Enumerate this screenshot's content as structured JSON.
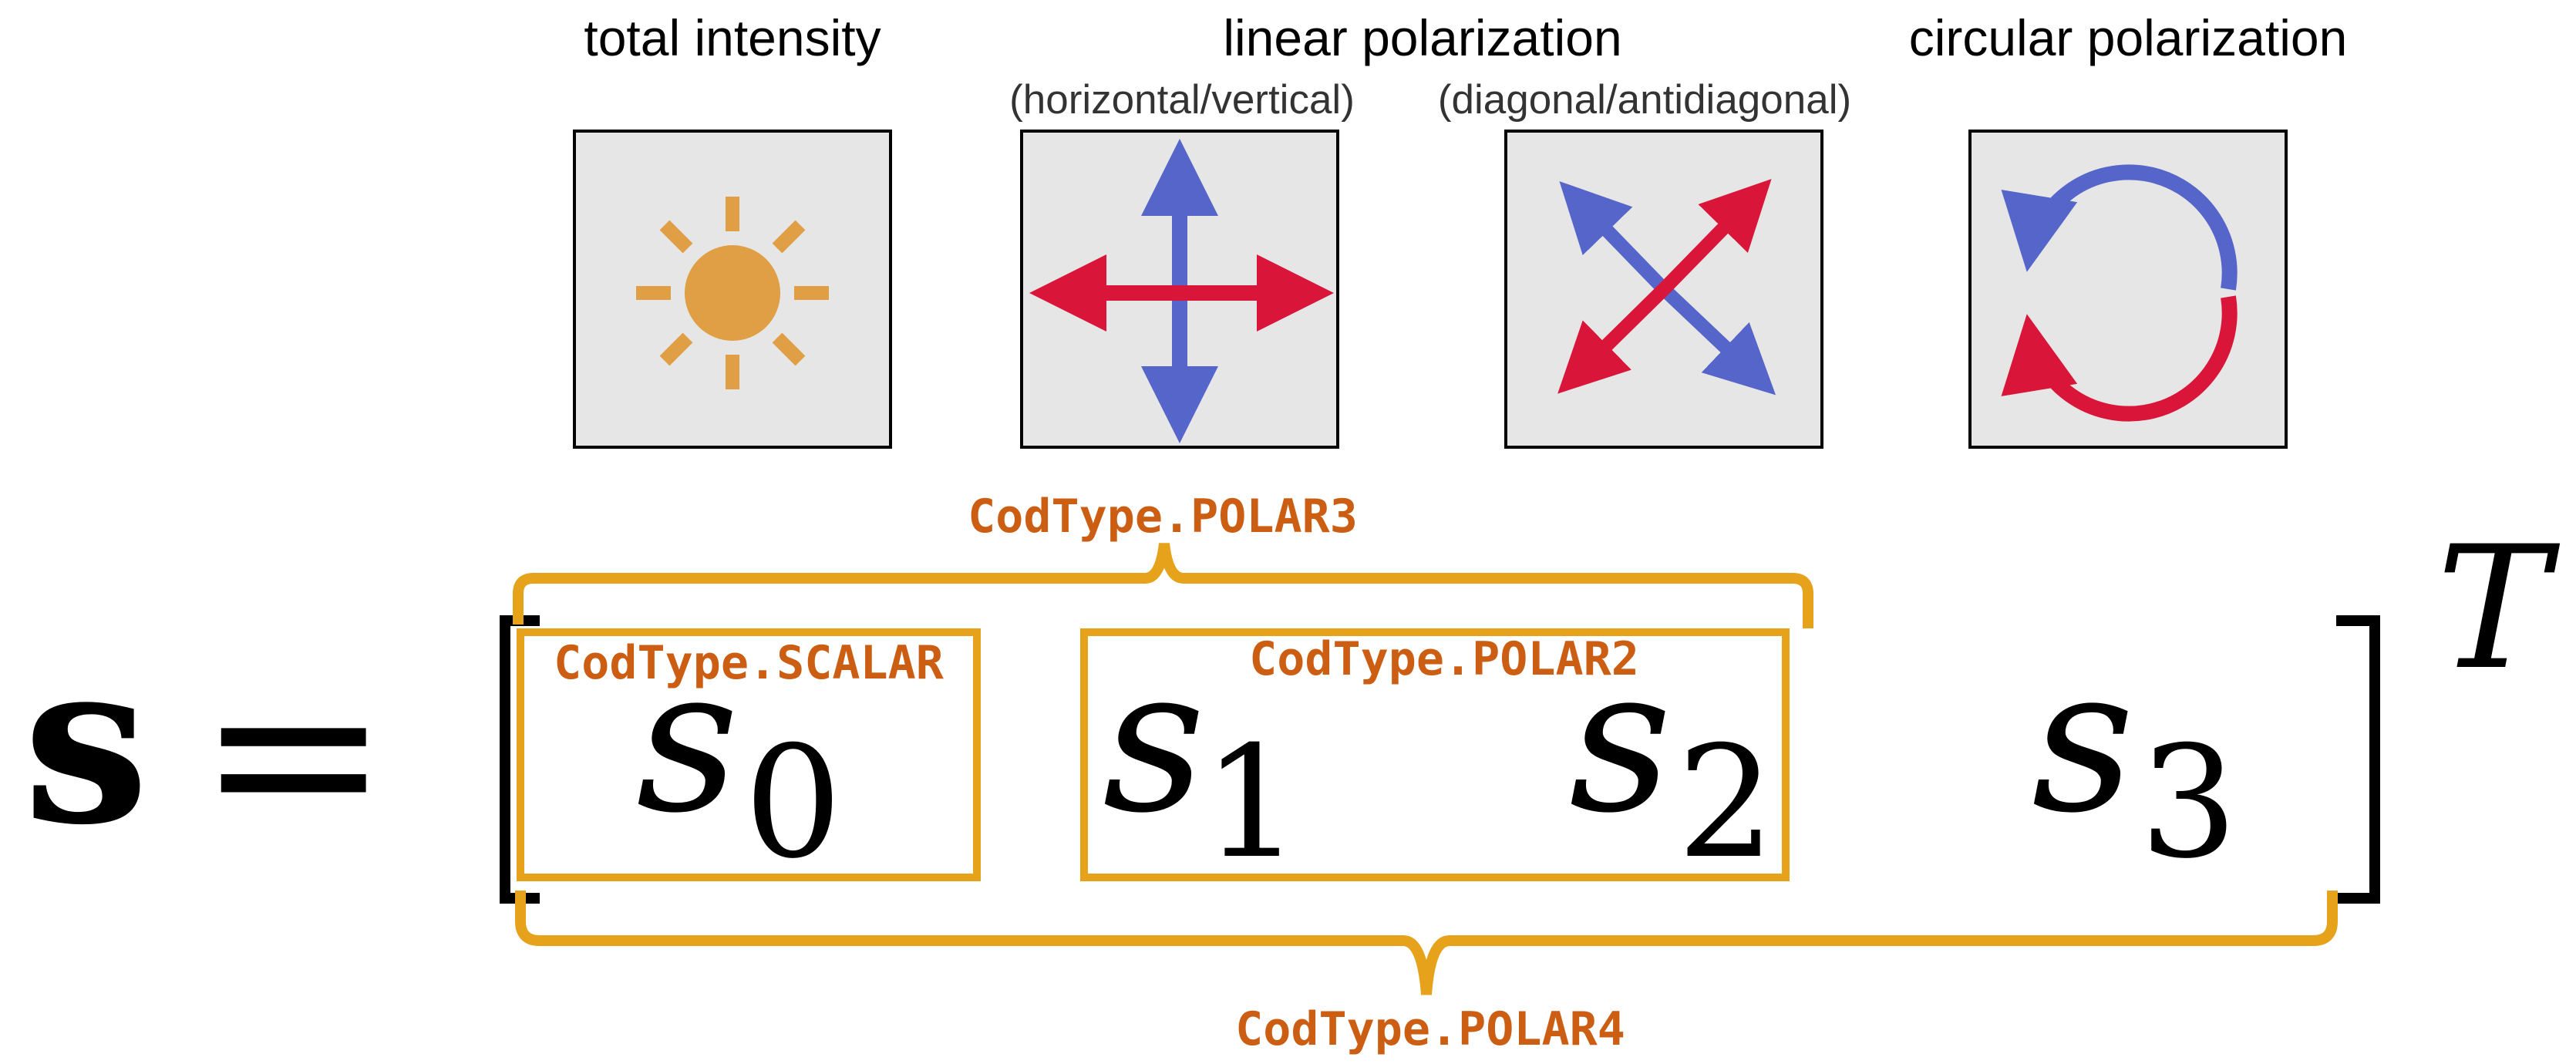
{
  "headers": {
    "total_intensity": "total intensity",
    "linear_polarization": "linear polarization",
    "circular_polarization": "circular polarization",
    "sub_hv": "(horizontal/vertical)",
    "sub_dad": "(diagonal/antidiagonal)"
  },
  "icons": [
    "sun-icon",
    "horizontal-vertical-arrows-icon",
    "diagonal-arrows-icon",
    "circular-arrows-icon"
  ],
  "equation": {
    "lhs": "s",
    "equals": "=",
    "sym": "s",
    "sub0": "0",
    "sub1": "1",
    "sub2": "2",
    "sub3": "3",
    "transpose": "T"
  },
  "codtypes": {
    "polar3": "CodType.POLAR3",
    "scalar": "CodType.SCALAR",
    "polar2": "CodType.POLAR2",
    "polar4": "CodType.POLAR4"
  },
  "colors": {
    "orange_label": "#cc5e14",
    "orange_bracket": "#e5a21a",
    "sun": "#e09e45",
    "blue": "#5565c9",
    "red": "#d9163a",
    "box_fill": "#e6e6e6"
  }
}
